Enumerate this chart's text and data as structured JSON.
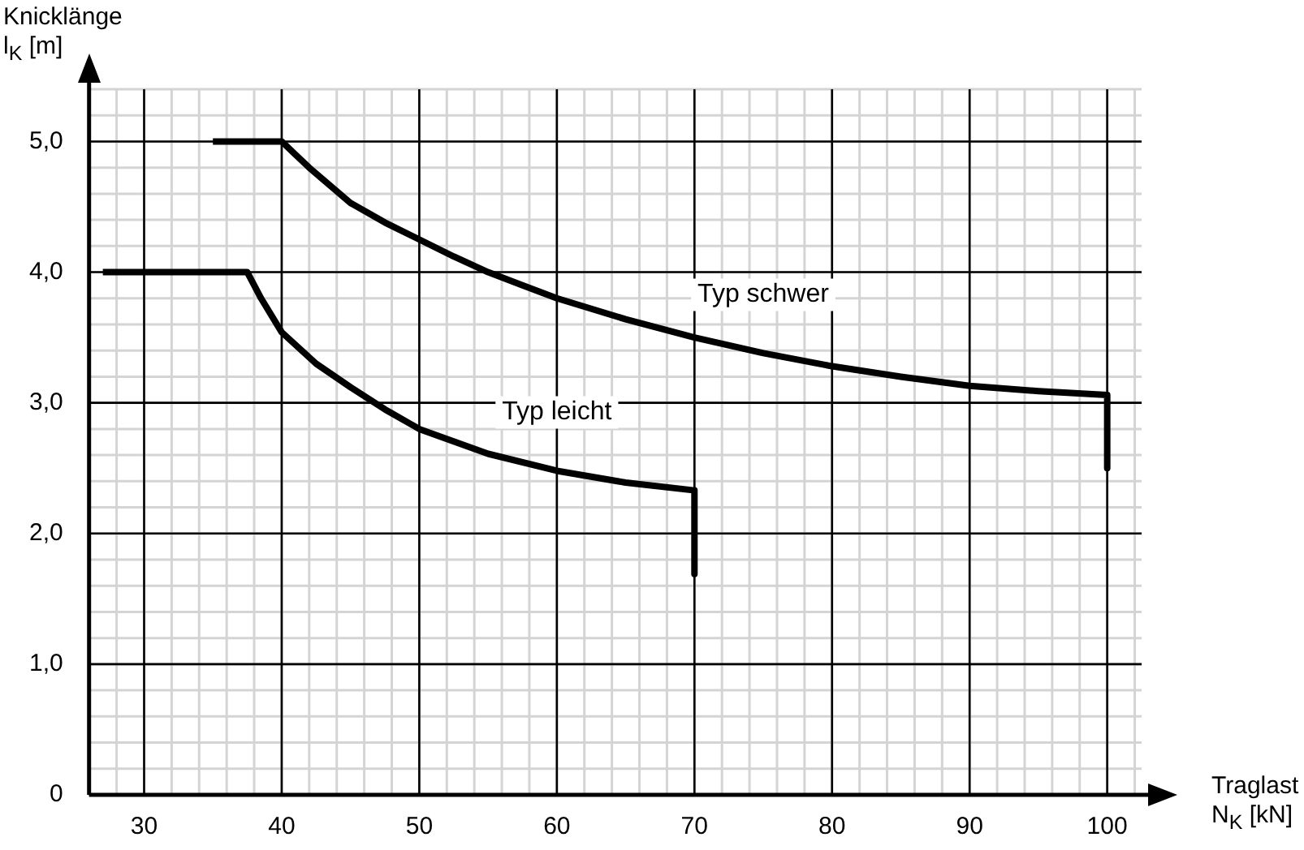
{
  "chart_data": {
    "type": "line",
    "xlabel": "Traglast\nN$_{K}$ [kN]",
    "ylabel": "Knicklänge\nl$_{K}$ [m]",
    "xlim": [
      26,
      102.5
    ],
    "ylim": [
      0,
      5.4
    ],
    "xticks": [
      30,
      40,
      50,
      60,
      70,
      80,
      90,
      100
    ],
    "yticks": [
      {
        "value": 0,
        "label": "0"
      },
      {
        "value": 1,
        "label": "1,0"
      },
      {
        "value": 2,
        "label": "2,0"
      },
      {
        "value": 3,
        "label": "3,0"
      },
      {
        "value": 4,
        "label": "4,0"
      },
      {
        "value": 5,
        "label": "5,0"
      }
    ],
    "grid": true,
    "legend": false,
    "marker": "none",
    "line_style": "solid",
    "series": [
      {
        "name": "Typ schwer",
        "color": "#000000",
        "x": [
          35,
          40,
          41,
          42,
          43,
          45,
          47.5,
          50,
          52.5,
          55,
          57.5,
          60,
          65,
          70,
          75,
          80,
          85,
          90,
          95,
          100,
          100
        ],
        "values": [
          5.0,
          5.0,
          4.9,
          4.8,
          4.71,
          4.53,
          4.38,
          4.25,
          4.12,
          4.0,
          3.9,
          3.8,
          3.64,
          3.5,
          3.38,
          3.28,
          3.2,
          3.13,
          3.09,
          3.06,
          2.5
        ]
      },
      {
        "name": "Typ leicht",
        "color": "#000000",
        "x": [
          27,
          37.5,
          38.5,
          40,
          42.5,
          45,
          47.5,
          50,
          55,
          60,
          65,
          70,
          70
        ],
        "values": [
          4.0,
          4.0,
          3.8,
          3.54,
          3.3,
          3.12,
          2.95,
          2.8,
          2.61,
          2.48,
          2.39,
          2.33,
          1.69
        ]
      }
    ]
  }
}
